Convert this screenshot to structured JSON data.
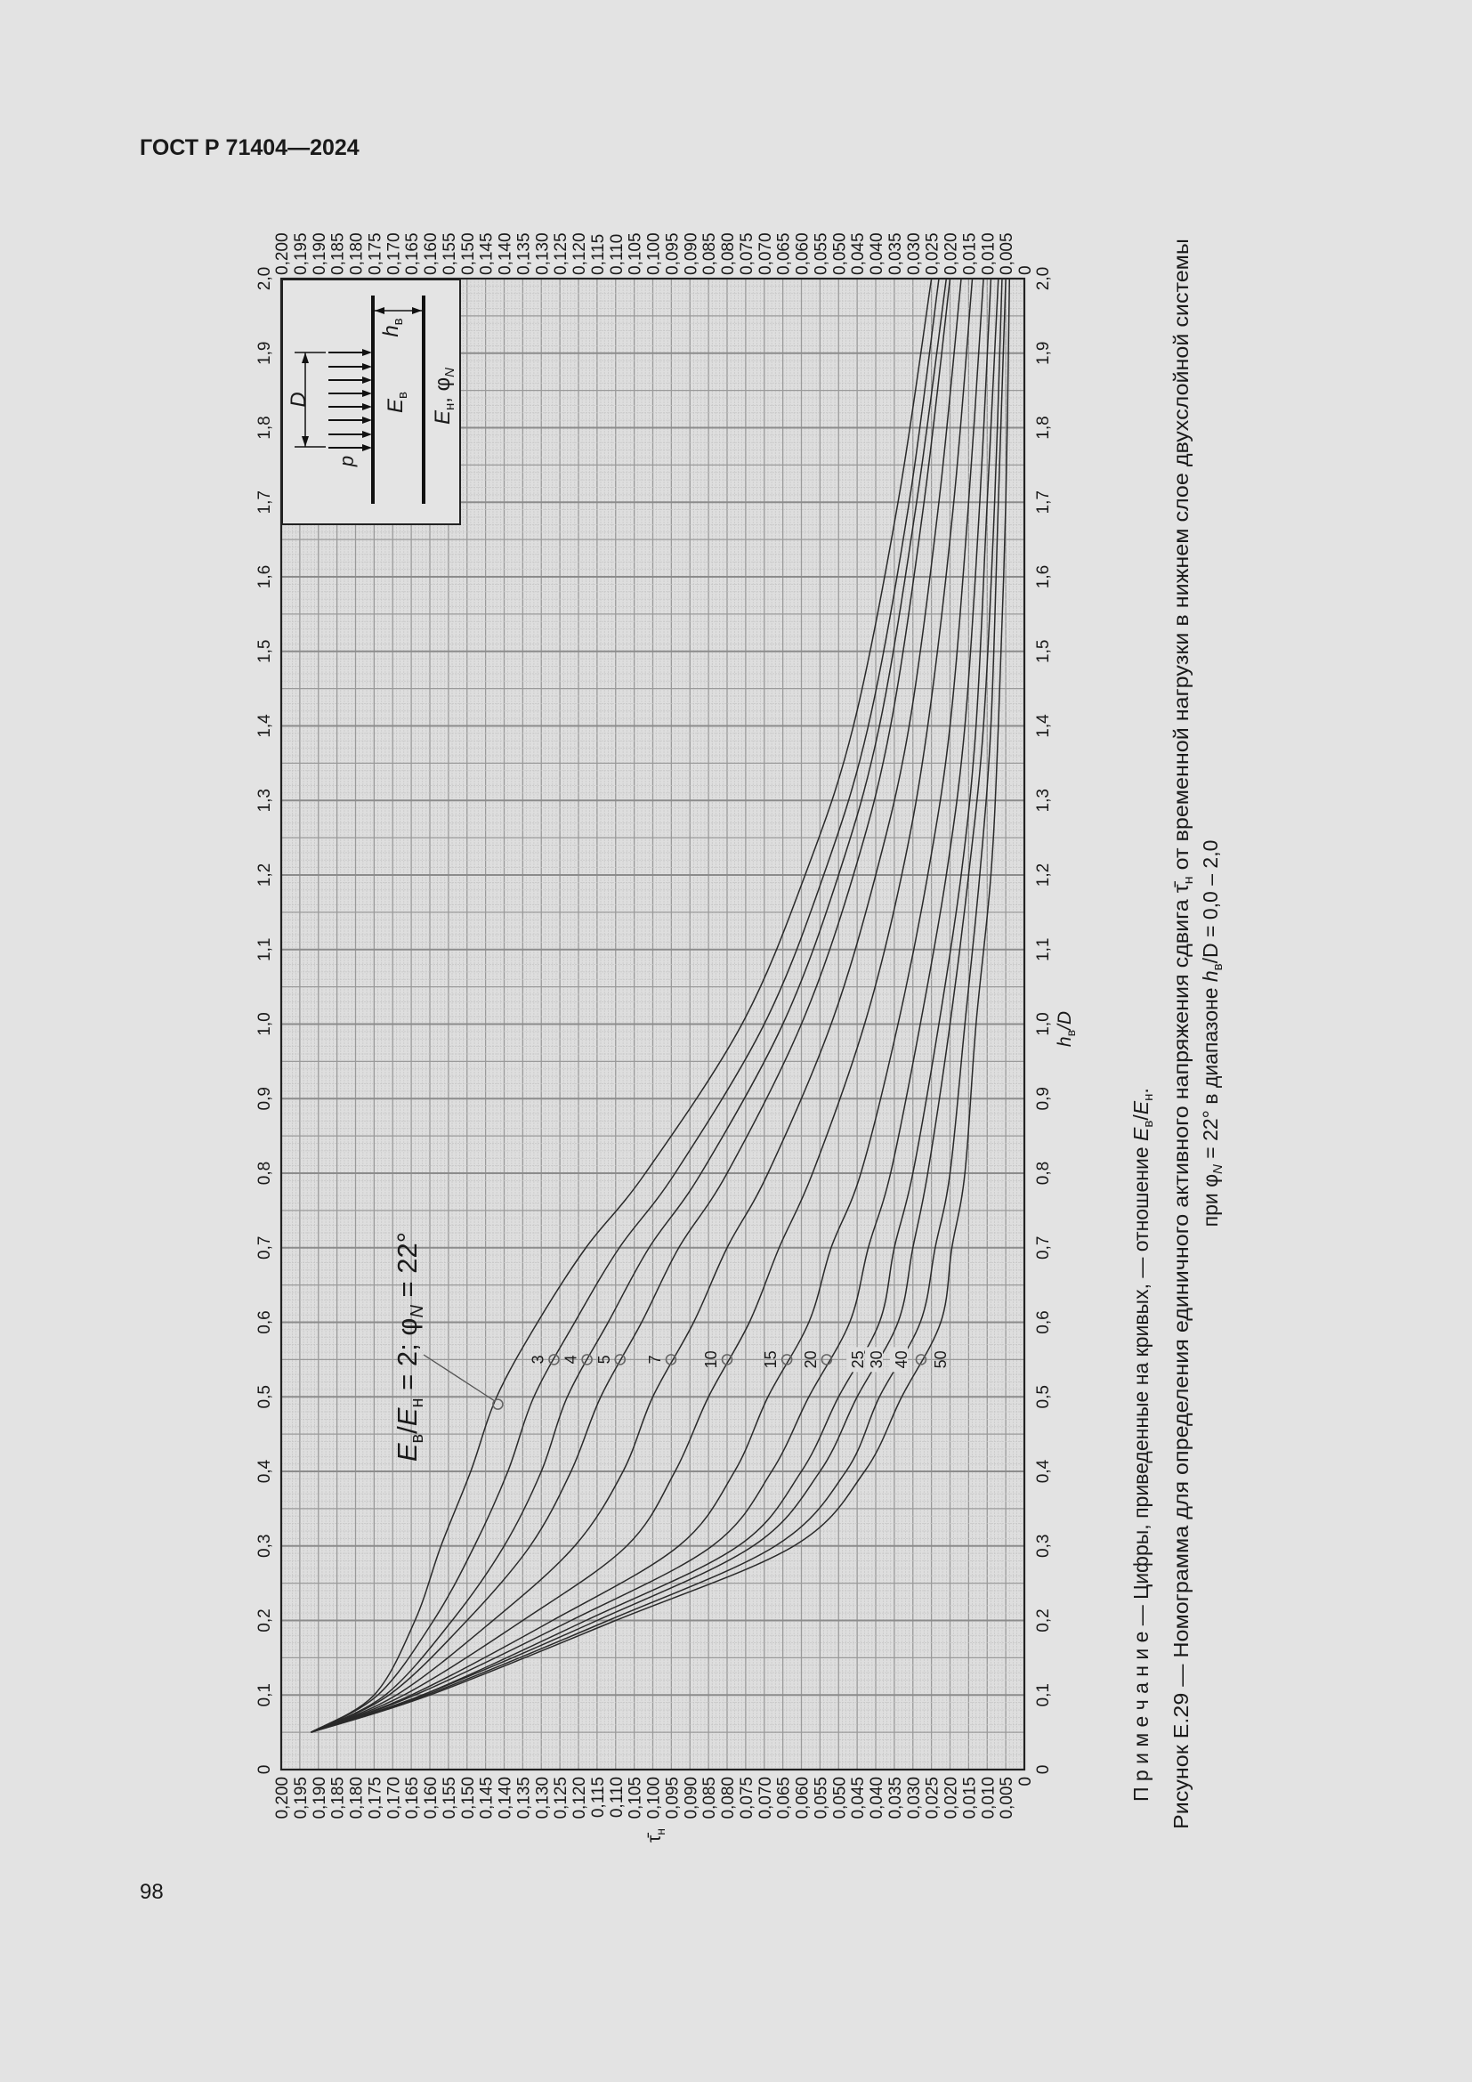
{
  "header": {
    "title": "ГОСТ Р 71404—2024"
  },
  "page_number": "98",
  "figure": {
    "note": {
      "prefix": "П р и м е ч а н и е — Цифры, приведенные на кривых, — отношение ",
      "e1": "E",
      "s1": "в",
      "slash": "/",
      "e2": "E",
      "s2": "н",
      "end": "."
    },
    "caption_line1": {
      "a": "Рисунок Е.29 — Номограмма для определения единичного активного напряжения сдвига ",
      "tau": "τ̄",
      "sub": "н",
      "b": " от временной нагрузки в нижнем слое двухслойной системы"
    },
    "caption_line2": {
      "a": "при ",
      "phi": "φ",
      "sub": "N",
      "b": " = 22° в диапазоне ",
      "h": "h",
      "hsub": "в",
      "c": "/D = 0,0 – 2,0"
    }
  },
  "inset": {
    "p": "p",
    "D": "D",
    "Eb": "E",
    "Eb_sub": "в",
    "hb": "h",
    "hb_sub": "в",
    "En": "E",
    "En_sub": "н",
    "phi": ", φ",
    "phi_sub": "N"
  },
  "chart_data": {
    "type": "line",
    "title": "Номограмма τ̄н от hв/D при φN = 22°",
    "x_label": {
      "main": "h",
      "sub": "в",
      "tail": "/D"
    },
    "y_label": {
      "main": "τ̄",
      "sub": "н"
    },
    "xlim": [
      0,
      2.0
    ],
    "ylim": [
      0,
      0.2
    ],
    "grid": true,
    "orientation": "rotated-90-ccw",
    "x_ticks": [
      "0",
      "0,1",
      "0,2",
      "0,3",
      "0,4",
      "0,5",
      "0,6",
      "0,7",
      "0,8",
      "0,9",
      "1,0",
      "1,1",
      "1,2",
      "1,3",
      "1,4",
      "1,5",
      "1,6",
      "1,7",
      "1,8",
      "1,9",
      "2,0"
    ],
    "y_ticks": [
      "0",
      "0,005",
      "0,010",
      "0,015",
      "0,020",
      "0,025",
      "0,030",
      "0,035",
      "0,040",
      "0,045",
      "0,050",
      "0,055",
      "0,060",
      "0,065",
      "0,070",
      "0,075",
      "0,080",
      "0,085",
      "0,090",
      "0,095",
      "0,100",
      "0,105",
      "0,110",
      "0,115",
      "0,120",
      "0,125",
      "0,130",
      "0,135",
      "0,140",
      "0,145",
      "0,150",
      "0,155",
      "0,160",
      "0,165",
      "0,170",
      "0,175",
      "0,180",
      "0,185",
      "0,190",
      "0,195",
      "0,200"
    ],
    "annotation": {
      "a": "E",
      "a_sub": "в",
      "slash": "/",
      "b": "E",
      "b_sub": "н",
      "mid": " = 2; ",
      "phi": "φ",
      "phi_sub": "N",
      "end": " = 22°",
      "h": 0.49,
      "tau": 0.1417
    },
    "x": [
      0.05,
      0.1,
      0.2,
      0.3,
      0.4,
      0.5,
      0.6,
      0.7,
      0.8,
      1.0,
      1.2,
      1.4,
      1.7,
      2.0
    ],
    "series": [
      {
        "name": "2",
        "values": [
          0.192,
          0.175,
          0.164,
          0.157,
          0.149,
          0.142,
          0.131,
          0.118,
          0.102,
          0.076,
          0.059,
          0.046,
          0.034,
          0.025
        ]
      },
      {
        "name": "3",
        "values": [
          0.192,
          0.174,
          0.159,
          0.148,
          0.139,
          0.132,
          0.121,
          0.109,
          0.094,
          0.07,
          0.054,
          0.042,
          0.031,
          0.023
        ]
      },
      {
        "name": "4",
        "values": [
          0.192,
          0.172,
          0.154,
          0.14,
          0.13,
          0.123,
          0.112,
          0.101,
          0.087,
          0.065,
          0.05,
          0.039,
          0.029,
          0.021
        ]
      },
      {
        "name": "5",
        "values": [
          0.192,
          0.171,
          0.15,
          0.133,
          0.122,
          0.114,
          0.103,
          0.093,
          0.08,
          0.06,
          0.046,
          0.036,
          0.027,
          0.02
        ]
      },
      {
        "name": "7",
        "values": [
          0.192,
          0.169,
          0.143,
          0.121,
          0.108,
          0.1,
          0.089,
          0.08,
          0.069,
          0.052,
          0.04,
          0.031,
          0.023,
          0.017
        ]
      },
      {
        "name": "10",
        "values": [
          0.192,
          0.167,
          0.135,
          0.107,
          0.094,
          0.085,
          0.074,
          0.066,
          0.057,
          0.043,
          0.033,
          0.026,
          0.019,
          0.014
        ]
      },
      {
        "name": "15",
        "values": [
          0.192,
          0.165,
          0.127,
          0.093,
          0.078,
          0.069,
          0.058,
          0.052,
          0.044,
          0.034,
          0.026,
          0.02,
          0.015,
          0.011
        ]
      },
      {
        "name": "20",
        "values": [
          0.192,
          0.164,
          0.122,
          0.084,
          0.068,
          0.058,
          0.047,
          0.042,
          0.036,
          0.028,
          0.021,
          0.016,
          0.012,
          0.009
        ]
      },
      {
        "name": "25",
        "values": [
          0.192,
          0.162,
          0.118,
          0.077,
          0.06,
          0.05,
          0.039,
          0.035,
          0.03,
          0.023,
          0.017,
          0.013,
          0.01,
          0.007
        ]
      },
      {
        "name": "30",
        "values": [
          0.192,
          0.162,
          0.115,
          0.073,
          0.055,
          0.045,
          0.034,
          0.03,
          0.026,
          0.02,
          0.015,
          0.011,
          0.008,
          0.006
        ]
      },
      {
        "name": "40",
        "values": [
          0.192,
          0.161,
          0.112,
          0.067,
          0.048,
          0.039,
          0.028,
          0.024,
          0.02,
          0.016,
          0.012,
          0.009,
          0.007,
          0.005
        ]
      },
      {
        "name": "50",
        "values": [
          0.192,
          0.16,
          0.11,
          0.062,
          0.043,
          0.033,
          0.0225,
          0.0195,
          0.016,
          0.013,
          0.009,
          0.007,
          0.005,
          0.004
        ]
      }
    ],
    "markers": [
      {
        "label": "3",
        "h": 0.55,
        "tau": 0.1266,
        "circle": true,
        "side": "before"
      },
      {
        "label": "4",
        "h": 0.55,
        "tau": 0.1177,
        "circle": true,
        "side": "before"
      },
      {
        "label": "5",
        "h": 0.55,
        "tau": 0.1088,
        "circle": true,
        "side": "before"
      },
      {
        "label": "7",
        "h": 0.55,
        "tau": 0.0951,
        "circle": true,
        "side": "before"
      },
      {
        "label": "10",
        "h": 0.55,
        "tau": 0.08,
        "circle": true,
        "side": "before"
      },
      {
        "label": "15",
        "h": 0.55,
        "tau": 0.0639,
        "circle": true,
        "side": "before"
      },
      {
        "label": "20",
        "h": 0.55,
        "tau": 0.0532,
        "circle": true,
        "side": "before"
      },
      {
        "label": "25",
        "h": 0.55,
        "tau": 0.045,
        "circle": false,
        "side": "on"
      },
      {
        "label": "30",
        "h": 0.55,
        "tau": 0.04,
        "circle": false,
        "side": "on"
      },
      {
        "label": "40",
        "h": 0.55,
        "tau": 0.0333,
        "circle": false,
        "side": "on"
      },
      {
        "label": "50",
        "h": 0.55,
        "tau": 0.0278,
        "circle": true,
        "side": "after"
      }
    ],
    "colors": {
      "curve": "#2a2a2a",
      "grid_major": "#9a9a9a",
      "grid_minor": "#c6c6c6",
      "background": "#e3e3e3"
    }
  }
}
